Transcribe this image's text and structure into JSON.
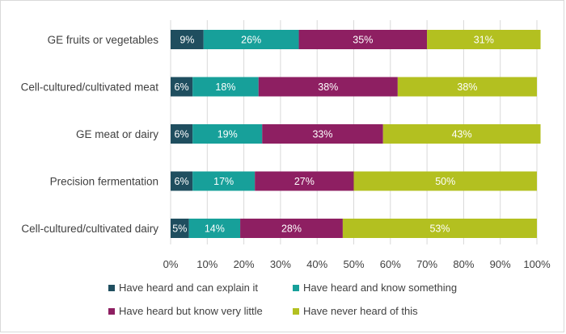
{
  "chart_data": {
    "type": "bar",
    "orientation": "horizontal",
    "stacked": true,
    "categories": [
      "GE fruits or vegetables",
      "Cell-cultured/cultivated meat",
      "GE meat or dairy",
      "Precision fermentation",
      "Cell-cultured/cultivated dairy"
    ],
    "series": [
      {
        "name": "Have heard and can explain it",
        "color": "#1f4e5f",
        "values": [
          9,
          6,
          6,
          6,
          5
        ],
        "labels": [
          "9%",
          "6%",
          "6%",
          "6%",
          "5%"
        ]
      },
      {
        "name": "Have heard and know something",
        "color": "#17a09a",
        "values": [
          26,
          18,
          19,
          17,
          14
        ],
        "labels": [
          "26%",
          "18%",
          "19%",
          "17%",
          "14%"
        ]
      },
      {
        "name": "Have heard but know very little",
        "color": "#8e1f62",
        "values": [
          35,
          38,
          33,
          27,
          28
        ],
        "labels": [
          "35%",
          "38%",
          "33%",
          "27%",
          "28%"
        ]
      },
      {
        "name": "Have never heard of this",
        "color": "#b3c020",
        "values": [
          31,
          38,
          43,
          50,
          53
        ],
        "labels": [
          "31%",
          "38%",
          "43%",
          "50%",
          "53%"
        ]
      }
    ],
    "xlim": [
      0,
      100
    ],
    "xticks": [
      "0%",
      "10%",
      "20%",
      "30%",
      "40%",
      "50%",
      "60%",
      "70%",
      "80%",
      "90%",
      "100%"
    ],
    "title": "",
    "xlabel": "",
    "ylabel": "",
    "grid": true,
    "legend_position": "bottom"
  }
}
